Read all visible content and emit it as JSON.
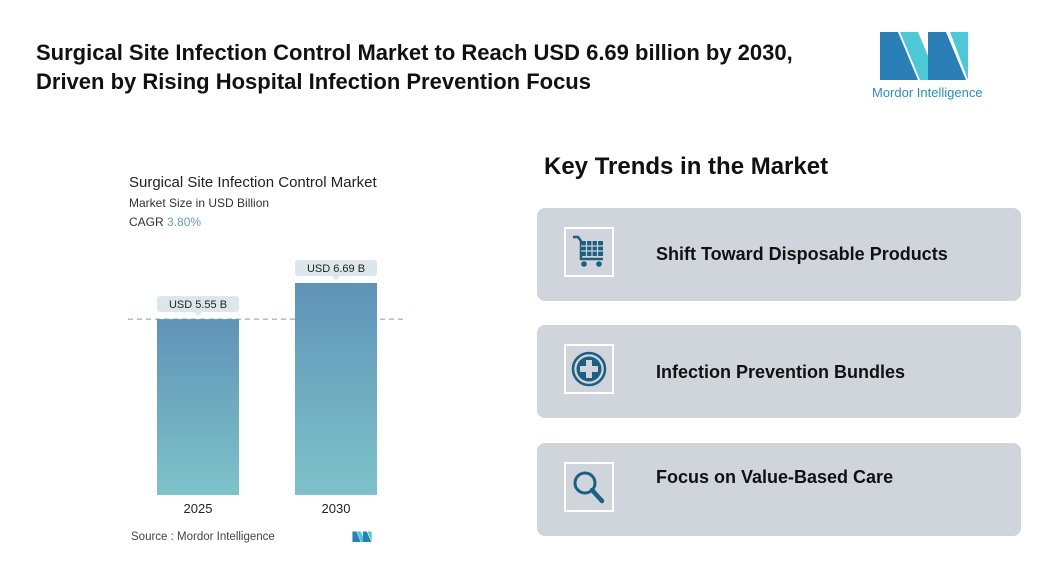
{
  "header": {
    "title": "Surgical Site Infection Control Market to Reach USD 6.69 billion by 2030, Driven by Rising Hospital Infection Prevention Focus",
    "logo_text": "Mordor Intelligence"
  },
  "chart_data": {
    "type": "bar",
    "title": "Surgical Site Infection Control Market",
    "subtitle": "Market Size in USD Billion",
    "cagr_label": "CAGR",
    "cagr_value": "3.80%",
    "categories": [
      "2025",
      "2030"
    ],
    "values": [
      5.55,
      6.69
    ],
    "data_labels": [
      "USD 5.55 B",
      "USD 6.69 B"
    ],
    "ylim": [
      0,
      6.69
    ],
    "source": "Source :  Mordor Intelligence",
    "bar_color_top": "#5f93b7",
    "bar_color_bottom": "#7ec3c9"
  },
  "trends": {
    "title": "Key Trends in the Market",
    "items": [
      {
        "label": "Shift Toward Disposable Products",
        "icon": "shopping-cart-icon"
      },
      {
        "label": "Infection Prevention Bundles",
        "icon": "medical-cross-icon"
      },
      {
        "label": "Focus on Value-Based Care",
        "icon": "magnifier-icon"
      }
    ]
  },
  "colors": {
    "icon": "#1d5f80",
    "card": "#d0d5db"
  }
}
